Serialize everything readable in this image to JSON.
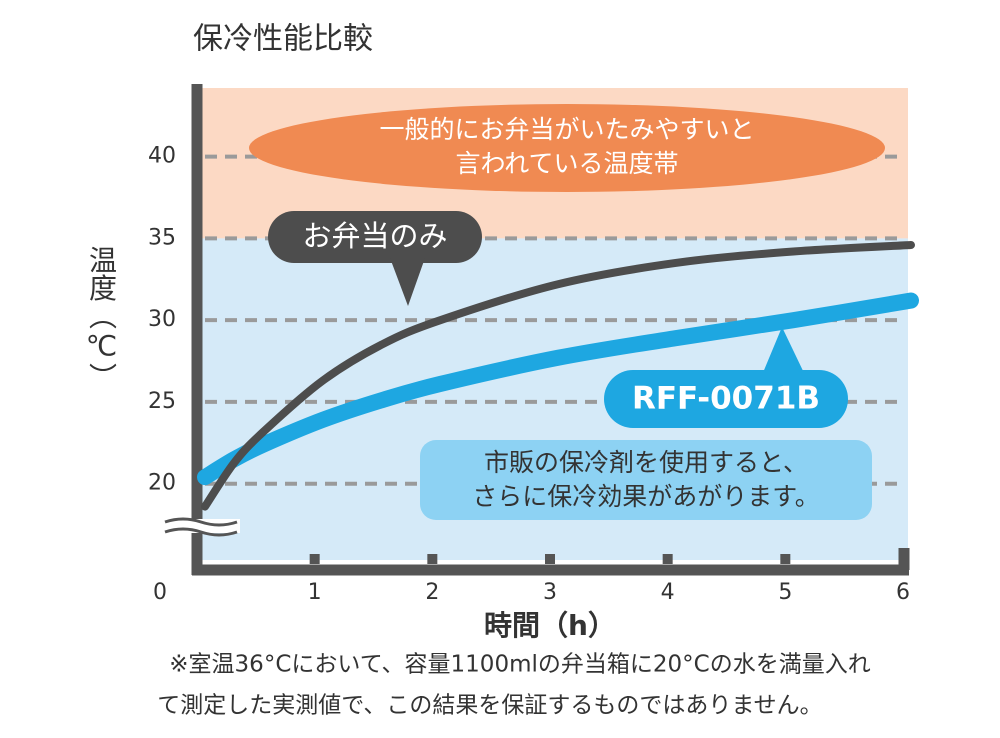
{
  "chart_data": {
    "type": "line",
    "title": "保冷性能比較",
    "xlabel": "時間（h）",
    "ylabel": "温度（℃）",
    "x": [
      0,
      0.25,
      0.5,
      1,
      1.5,
      2,
      3,
      4,
      5,
      6
    ],
    "series": [
      {
        "name": "お弁当のみ",
        "color": "#4d4d4d",
        "values": [
          18.6,
          21.3,
          23.2,
          26.3,
          28.5,
          30.0,
          32.2,
          33.5,
          34.2,
          34.6
        ]
      },
      {
        "name": "RFF-0071B",
        "color": "#1ea7e1",
        "values": [
          20.4,
          21.5,
          22.4,
          23.9,
          25.1,
          26.1,
          27.7,
          28.9,
          30.0,
          31.2
        ]
      }
    ],
    "xlim": [
      0,
      6
    ],
    "xticks": [
      0,
      1,
      2,
      3,
      4,
      5,
      6
    ],
    "ylim": [
      15.7,
      44.2
    ],
    "yticks": [
      20,
      25,
      30,
      35,
      40
    ],
    "grid": true,
    "band_from": 35,
    "band_label": [
      "一般的にお弁当がいたみやすいと",
      "言われている温度帯"
    ],
    "annotation": [
      "市販の保冷剤を使用すると、",
      "さらに保冷効果があがります。"
    ],
    "footnote": [
      "※室温36°Cにおいて、容量1100mlの弁当箱に20°Cの水を満量入れ",
      "て測定した実測値で、この結果を保証するものではありません。"
    ]
  }
}
